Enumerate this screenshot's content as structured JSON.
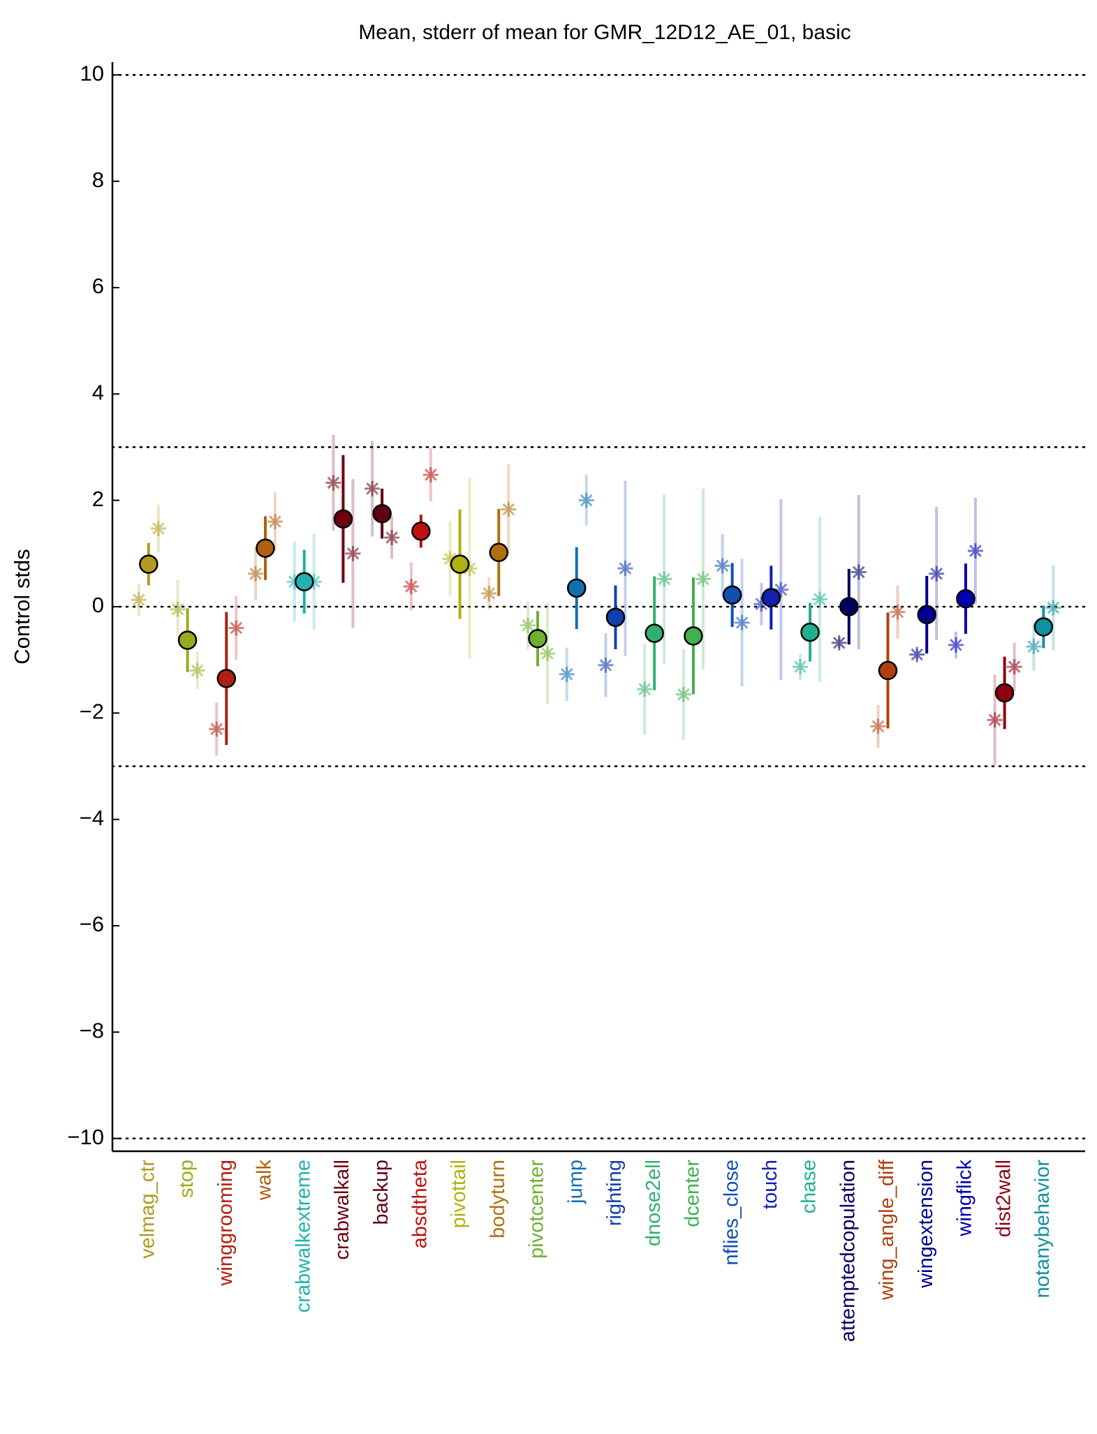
{
  "chart_data": {
    "type": "errorbar",
    "title": "Mean, stderr of mean for GMR_12D12_AE_01, basic",
    "ylabel": "Control stds",
    "categories": [
      "velmag_ctr",
      "stop",
      "winggrooming",
      "walk",
      "crabwalkextreme",
      "crabwalkall",
      "backup",
      "absdtheta",
      "pivottail",
      "bodyturn",
      "pivotcenter",
      "jump",
      "righting",
      "dnose2ell",
      "dcenter",
      "nflies_close",
      "touch",
      "chase",
      "attemptedcopulation",
      "wing_angle_diff",
      "wingextension",
      "wingflick",
      "dist2wall",
      "notanybehavior"
    ],
    "colors": [
      "#b09a20",
      "#9aaa20",
      "#b02010",
      "#b06010",
      "#20b0b0",
      "#700010",
      "#600010",
      "#c01010",
      "#b0b010",
      "#b07010",
      "#70b030",
      "#1070b0",
      "#1040b0",
      "#30b070",
      "#40b050",
      "#1050b0",
      "#1020b0",
      "#20b090",
      "#000060",
      "#b04010",
      "#000090",
      "#0000b0",
      "#900010",
      "#1090a0"
    ],
    "values": [
      0.8,
      -0.63,
      -1.35,
      1.1,
      0.47,
      1.65,
      1.75,
      1.42,
      0.8,
      1.02,
      -0.6,
      0.35,
      -0.2,
      -0.5,
      -0.55,
      0.22,
      0.17,
      -0.48,
      0,
      -1.2,
      -0.15,
      0.15,
      -1.62,
      -0.38
    ],
    "errors": [
      0.4,
      0.6,
      1.25,
      0.6,
      0.6,
      1.2,
      0.47,
      0.31,
      1.03,
      0.82,
      0.52,
      0.77,
      0.6,
      1.07,
      1.1,
      0.6,
      0.6,
      0.55,
      0.71,
      1.09,
      0.73,
      0.66,
      0.68,
      0.4
    ],
    "left_values": [
      0.13,
      -0.05,
      -2.3,
      0.62,
      0.47,
      2.33,
      2.22,
      0.38,
      0.9,
      0.25,
      -0.35,
      -1.27,
      -1.1,
      -1.55,
      -1.65,
      0.77,
      0.05,
      -1.13,
      -0.68,
      -2.25,
      -0.9,
      -0.72,
      -2.13,
      -0.75
    ],
    "left_errors": [
      0.3,
      0.55,
      0.5,
      0.5,
      0.75,
      0.9,
      0.9,
      0.45,
      0.7,
      0.3,
      0.45,
      0.5,
      0.6,
      0.85,
      0.85,
      0.6,
      0.4,
      0.25,
      0.1,
      0.4,
      0.1,
      0.25,
      0.85,
      0.45
    ],
    "right_values": [
      1.47,
      -1.2,
      -0.4,
      1.6,
      0.47,
      1.0,
      1.3,
      2.48,
      0.72,
      1.83,
      -0.88,
      2.0,
      0.72,
      0.52,
      0.52,
      -0.3,
      0.32,
      0.14,
      0.65,
      -0.1,
      0.62,
      1.05,
      -1.13,
      -0.02
    ],
    "right_errors": [
      0.45,
      0.35,
      0.6,
      0.55,
      0.9,
      1.4,
      0.4,
      0.5,
      1.7,
      0.85,
      0.95,
      0.48,
      1.65,
      1.6,
      1.7,
      1.2,
      1.7,
      1.55,
      1.45,
      0.5,
      1.25,
      1.0,
      0.45,
      0.8
    ],
    "ylim": [
      -10.24,
      10.24
    ],
    "yticks": [
      {
        "value": -10,
        "label": "−10"
      },
      {
        "value": -8,
        "label": "−8"
      },
      {
        "value": -6,
        "label": "−6"
      },
      {
        "value": -4,
        "label": "−4"
      },
      {
        "value": -2,
        "label": "−2"
      },
      0,
      2,
      4,
      6,
      8,
      10
    ],
    "hlines": [
      -10,
      -3,
      0,
      3,
      10
    ]
  }
}
